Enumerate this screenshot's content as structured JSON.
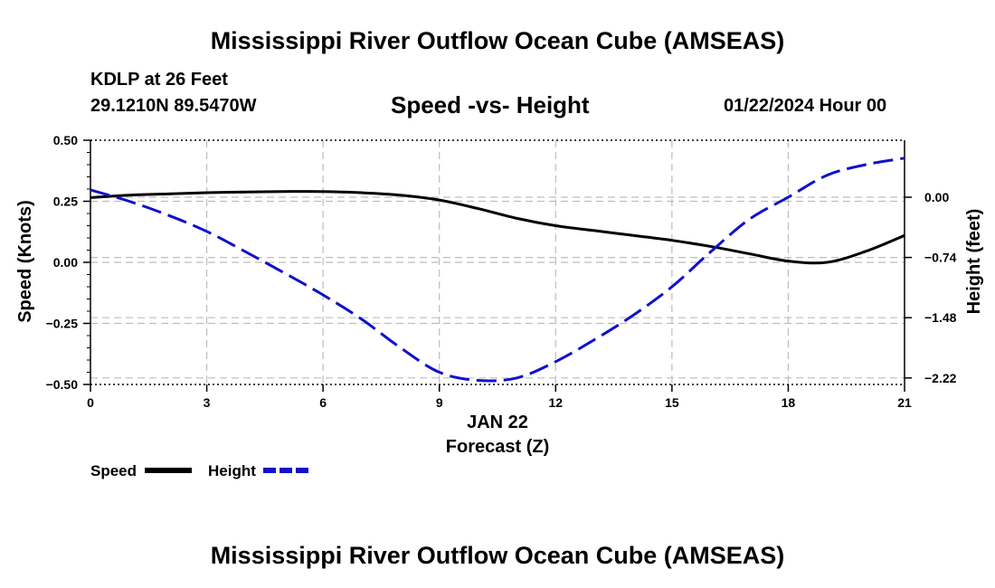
{
  "header": {
    "title": "Mississippi River Outflow Ocean Cube (AMSEAS)",
    "station": "KDLP at 26 Feet",
    "coordinates": "29.1210N  89.5470W",
    "datetime": "01/22/2024 Hour 00",
    "footer_title": "Mississippi River Outflow Ocean Cube (AMSEAS)"
  },
  "chart_data": {
    "type": "line",
    "title": "Speed -vs- Height",
    "xlabel": "Forecast (Z)",
    "xsublabel": "JAN 22",
    "ylabel": "Speed (Knots)",
    "y2label": "Height (feet)",
    "xlim": [
      0,
      21
    ],
    "ylim": [
      -0.5,
      0.5
    ],
    "y2lim": [
      -2.3,
      0.7
    ],
    "x_ticks": [
      0,
      3,
      6,
      9,
      12,
      15,
      18,
      21
    ],
    "x_tick_labels": [
      "0",
      "3",
      "6",
      "9",
      "12",
      "15",
      "18",
      "21"
    ],
    "y_ticks": [
      0.5,
      0.25,
      0.0,
      -0.25,
      -0.5
    ],
    "y_tick_labels": [
      "0.50",
      "0.25",
      "0.00",
      "−0.25",
      "−0.50"
    ],
    "y2_ticks": [
      0.0,
      -0.74,
      -1.48,
      -2.22
    ],
    "y2_tick_labels": [
      "0.00",
      "−0.74",
      "−1.48",
      "−2.22"
    ],
    "grid": true,
    "legend_position": "bottom-left",
    "x": [
      0,
      1,
      2,
      3,
      4,
      5,
      6,
      7,
      8,
      9,
      10,
      11,
      12,
      13,
      14,
      15,
      16,
      17,
      18,
      19,
      20,
      21
    ],
    "series": [
      {
        "name": "Speed",
        "axis": "left",
        "color": "#000000",
        "style": "solid",
        "values": [
          0.265,
          0.275,
          0.28,
          0.285,
          0.288,
          0.29,
          0.29,
          0.285,
          0.275,
          0.255,
          0.22,
          0.18,
          0.15,
          0.13,
          0.11,
          0.09,
          0.065,
          0.035,
          0.005,
          0.0,
          0.045,
          0.11
        ]
      },
      {
        "name": "Height",
        "axis": "right",
        "color": "#1010cc",
        "style": "dashed",
        "values": [
          0.09,
          -0.05,
          -0.22,
          -0.42,
          -0.67,
          -0.93,
          -1.2,
          -1.5,
          -1.85,
          -2.15,
          -2.25,
          -2.22,
          -2.02,
          -1.75,
          -1.45,
          -1.1,
          -0.67,
          -0.27,
          0.0,
          0.27,
          0.4,
          0.48
        ]
      }
    ]
  }
}
